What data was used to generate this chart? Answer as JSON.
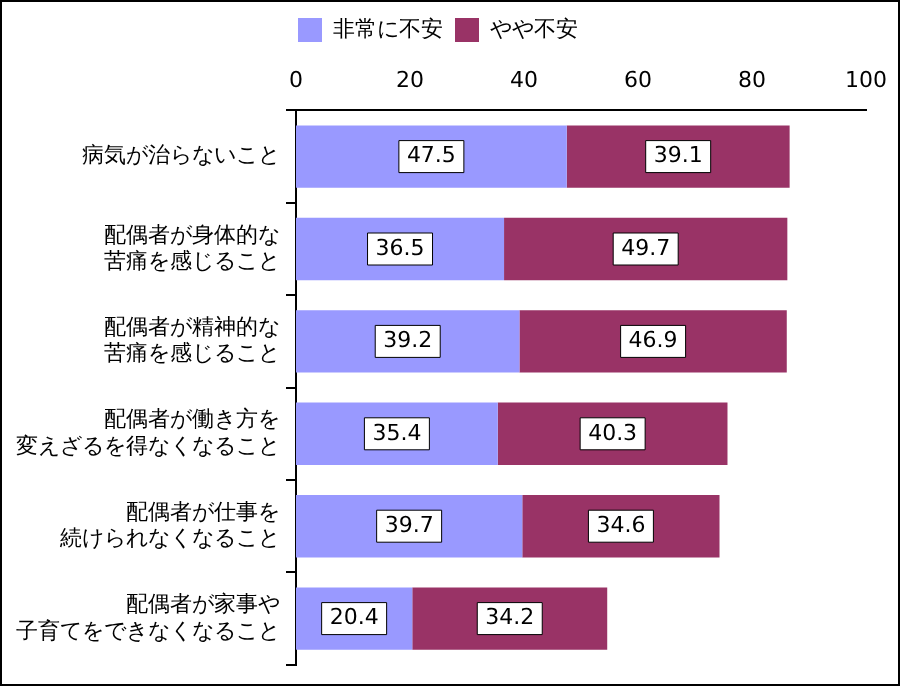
{
  "chart_data": {
    "type": "bar",
    "orientation": "horizontal",
    "stacked": true,
    "categories": [
      "病気が治らないこと",
      "配偶者が身体的な苦痛を感じること",
      "配偶者が精神的な苦痛を感じること",
      "配偶者が働き方を変えざるを得なくなること",
      "配偶者が仕事を続けられなくなること",
      "配偶者が家事や子育てをできなくなること"
    ],
    "series": [
      {
        "name": "非常に不安",
        "color": "#9999ff",
        "values": [
          47.5,
          36.5,
          39.2,
          35.4,
          39.7,
          20.4
        ]
      },
      {
        "name": "やや不安",
        "color": "#993366",
        "values": [
          39.1,
          49.7,
          46.9,
          40.3,
          34.6,
          34.2
        ]
      }
    ],
    "xlim": [
      0,
      100
    ],
    "xticks": [
      0,
      20,
      40,
      60,
      80,
      100
    ],
    "data_labels": true,
    "legend": "top",
    "grid": false
  }
}
